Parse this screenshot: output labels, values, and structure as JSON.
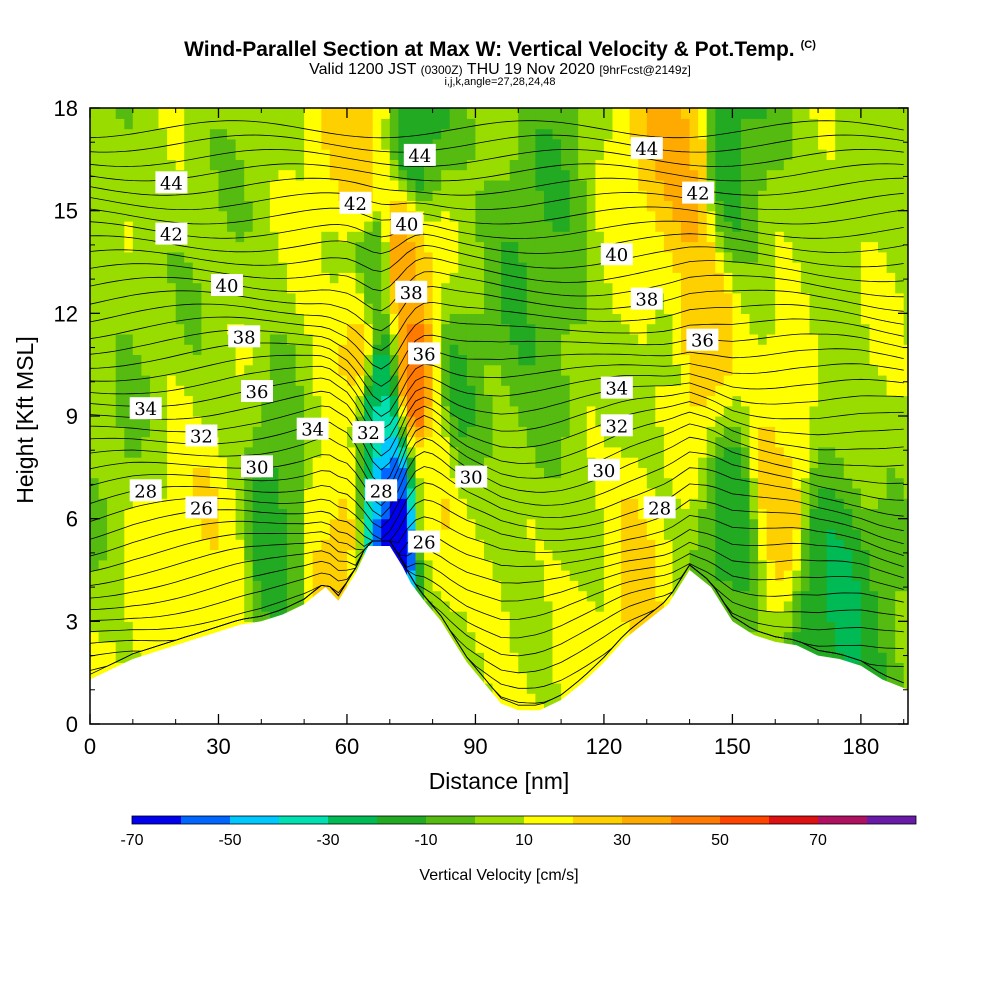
{
  "header": {
    "title": "Wind-Parallel Section at Max W: Vertical Velocity & Pot.Temp.",
    "copyright": "(C)",
    "subtitle_a": "Valid 1200 JST",
    "subtitle_b": "(0300Z)",
    "subtitle_c": "THU 19 Nov 2020",
    "subtitle_d": "[9hrFcst@2149z]",
    "params": "i,j,k,angle=27,28,24,48"
  },
  "chart_data": {
    "type": "heatmap",
    "xlabel": "Distance [nm]",
    "ylabel": "Height [Kft MSL]",
    "xlim": [
      0,
      191
    ],
    "ylim": [
      0,
      18
    ],
    "xticks": [
      0,
      30,
      60,
      90,
      120,
      150,
      180
    ],
    "yticks": [
      0,
      3,
      6,
      9,
      12,
      15,
      18
    ],
    "terrain": {
      "x": [
        0,
        5,
        10,
        15,
        20,
        25,
        30,
        35,
        40,
        45,
        50,
        55,
        58,
        62,
        65,
        70,
        73,
        75,
        78,
        82,
        85,
        88,
        92,
        96,
        100,
        105,
        110,
        115,
        120,
        125,
        130,
        135,
        140,
        145,
        150,
        155,
        160,
        165,
        170,
        175,
        180,
        185,
        191
      ],
      "height_kft": [
        1.3,
        1.6,
        1.9,
        2.1,
        2.3,
        2.5,
        2.7,
        2.9,
        3.0,
        3.2,
        3.5,
        4.0,
        3.6,
        4.4,
        5.2,
        5.2,
        4.6,
        4.1,
        3.6,
        3.0,
        2.4,
        1.8,
        1.2,
        0.6,
        0.4,
        0.4,
        0.7,
        1.2,
        1.8,
        2.5,
        3.0,
        3.5,
        4.5,
        4.0,
        3.0,
        2.6,
        2.4,
        2.3,
        2.0,
        1.9,
        1.7,
        1.3,
        1.0
      ]
    },
    "w_features_cm_s": [
      {
        "x": 8,
        "y": 9.0,
        "w": 2
      },
      {
        "x": 15,
        "y": 6.0,
        "w": 12
      },
      {
        "x": 29,
        "y": 4.2,
        "w": 18
      },
      {
        "x": 30,
        "y": 12.0,
        "w": 4
      },
      {
        "x": 45,
        "y": 5.5,
        "w": -12
      },
      {
        "x": 55,
        "y": 7.0,
        "w": 14
      },
      {
        "x": 58,
        "y": 4.8,
        "w": 25
      },
      {
        "x": 63,
        "y": 11.5,
        "w": 28
      },
      {
        "x": 64,
        "y": 16.5,
        "w": 24
      },
      {
        "x": 66,
        "y": 13.0,
        "w": -12
      },
      {
        "x": 68,
        "y": 9.5,
        "w": -30
      },
      {
        "x": 70,
        "y": 7.0,
        "w": -50
      },
      {
        "x": 71,
        "y": 5.5,
        "w": -70
      },
      {
        "x": 73,
        "y": 14.0,
        "w": 35
      },
      {
        "x": 76,
        "y": 10.0,
        "w": 45
      },
      {
        "x": 76,
        "y": 17.0,
        "w": -15
      },
      {
        "x": 80,
        "y": 6.5,
        "w": 20
      },
      {
        "x": 82,
        "y": 8.5,
        "w": 15
      },
      {
        "x": 85,
        "y": 9.5,
        "w": -8
      },
      {
        "x": 100,
        "y": 1.4,
        "w": 12
      },
      {
        "x": 105,
        "y": 12.0,
        "w": -8
      },
      {
        "x": 118,
        "y": 5.5,
        "w": 10
      },
      {
        "x": 128,
        "y": 4.0,
        "w": 20
      },
      {
        "x": 135,
        "y": 9.0,
        "w": 6
      },
      {
        "x": 140,
        "y": 16.0,
        "w": 32
      },
      {
        "x": 142,
        "y": 11.5,
        "w": 25
      },
      {
        "x": 149,
        "y": 17.0,
        "w": -12
      },
      {
        "x": 150,
        "y": 5.5,
        "w": -12
      },
      {
        "x": 160,
        "y": 7.0,
        "w": 22
      },
      {
        "x": 172,
        "y": 3.6,
        "w": -18
      },
      {
        "x": 183,
        "y": 11.0,
        "w": 8
      }
    ],
    "theta_contour_labels": [
      {
        "text": "44",
        "x": 19,
        "y": 15.8
      },
      {
        "text": "44",
        "x": 77,
        "y": 16.6
      },
      {
        "text": "44",
        "x": 130,
        "y": 16.8
      },
      {
        "text": "42",
        "x": 19,
        "y": 14.3
      },
      {
        "text": "42",
        "x": 62,
        "y": 15.2
      },
      {
        "text": "42",
        "x": 142,
        "y": 15.5
      },
      {
        "text": "40",
        "x": 32,
        "y": 12.8
      },
      {
        "text": "40",
        "x": 74,
        "y": 14.6
      },
      {
        "text": "40",
        "x": 123,
        "y": 13.7
      },
      {
        "text": "38",
        "x": 36,
        "y": 11.3
      },
      {
        "text": "38",
        "x": 75,
        "y": 12.6
      },
      {
        "text": "38",
        "x": 130,
        "y": 12.4
      },
      {
        "text": "36",
        "x": 39,
        "y": 9.7
      },
      {
        "text": "36",
        "x": 78,
        "y": 10.8
      },
      {
        "text": "36",
        "x": 143,
        "y": 11.2
      },
      {
        "text": "34",
        "x": 13,
        "y": 9.2
      },
      {
        "text": "34",
        "x": 52,
        "y": 8.6
      },
      {
        "text": "34",
        "x": 123,
        "y": 9.8
      },
      {
        "text": "32",
        "x": 26,
        "y": 8.4
      },
      {
        "text": "32",
        "x": 65,
        "y": 8.5
      },
      {
        "text": "32",
        "x": 123,
        "y": 8.7
      },
      {
        "text": "30",
        "x": 39,
        "y": 7.5
      },
      {
        "text": "30",
        "x": 89,
        "y": 7.2
      },
      {
        "text": "30",
        "x": 120,
        "y": 7.4
      },
      {
        "text": "28",
        "x": 13,
        "y": 6.8
      },
      {
        "text": "28",
        "x": 68,
        "y": 6.8
      },
      {
        "text": "28",
        "x": 133,
        "y": 6.3
      },
      {
        "text": "26",
        "x": 26,
        "y": 6.3
      },
      {
        "text": "26",
        "x": 78,
        "y": 5.3
      }
    ],
    "colorbar": {
      "title": "Vertical Velocity [cm/s]",
      "bounds": [
        -70,
        -60,
        -50,
        -40,
        -30,
        -20,
        -10,
        0,
        10,
        20,
        30,
        40,
        50,
        60,
        70,
        80
      ],
      "colors": [
        "#0000ee",
        "#0066ff",
        "#00c8ff",
        "#00e0b0",
        "#00bb55",
        "#22aa22",
        "#55bb11",
        "#99dd00",
        "#ffff00",
        "#ffd000",
        "#ffaa00",
        "#ff7a00",
        "#ff4400",
        "#dd1111",
        "#b01060",
        "#6a1aa8"
      ],
      "tick_labels": [
        "-70",
        "-50",
        "-30",
        "-10",
        "10",
        "30",
        "50",
        "70"
      ]
    }
  }
}
